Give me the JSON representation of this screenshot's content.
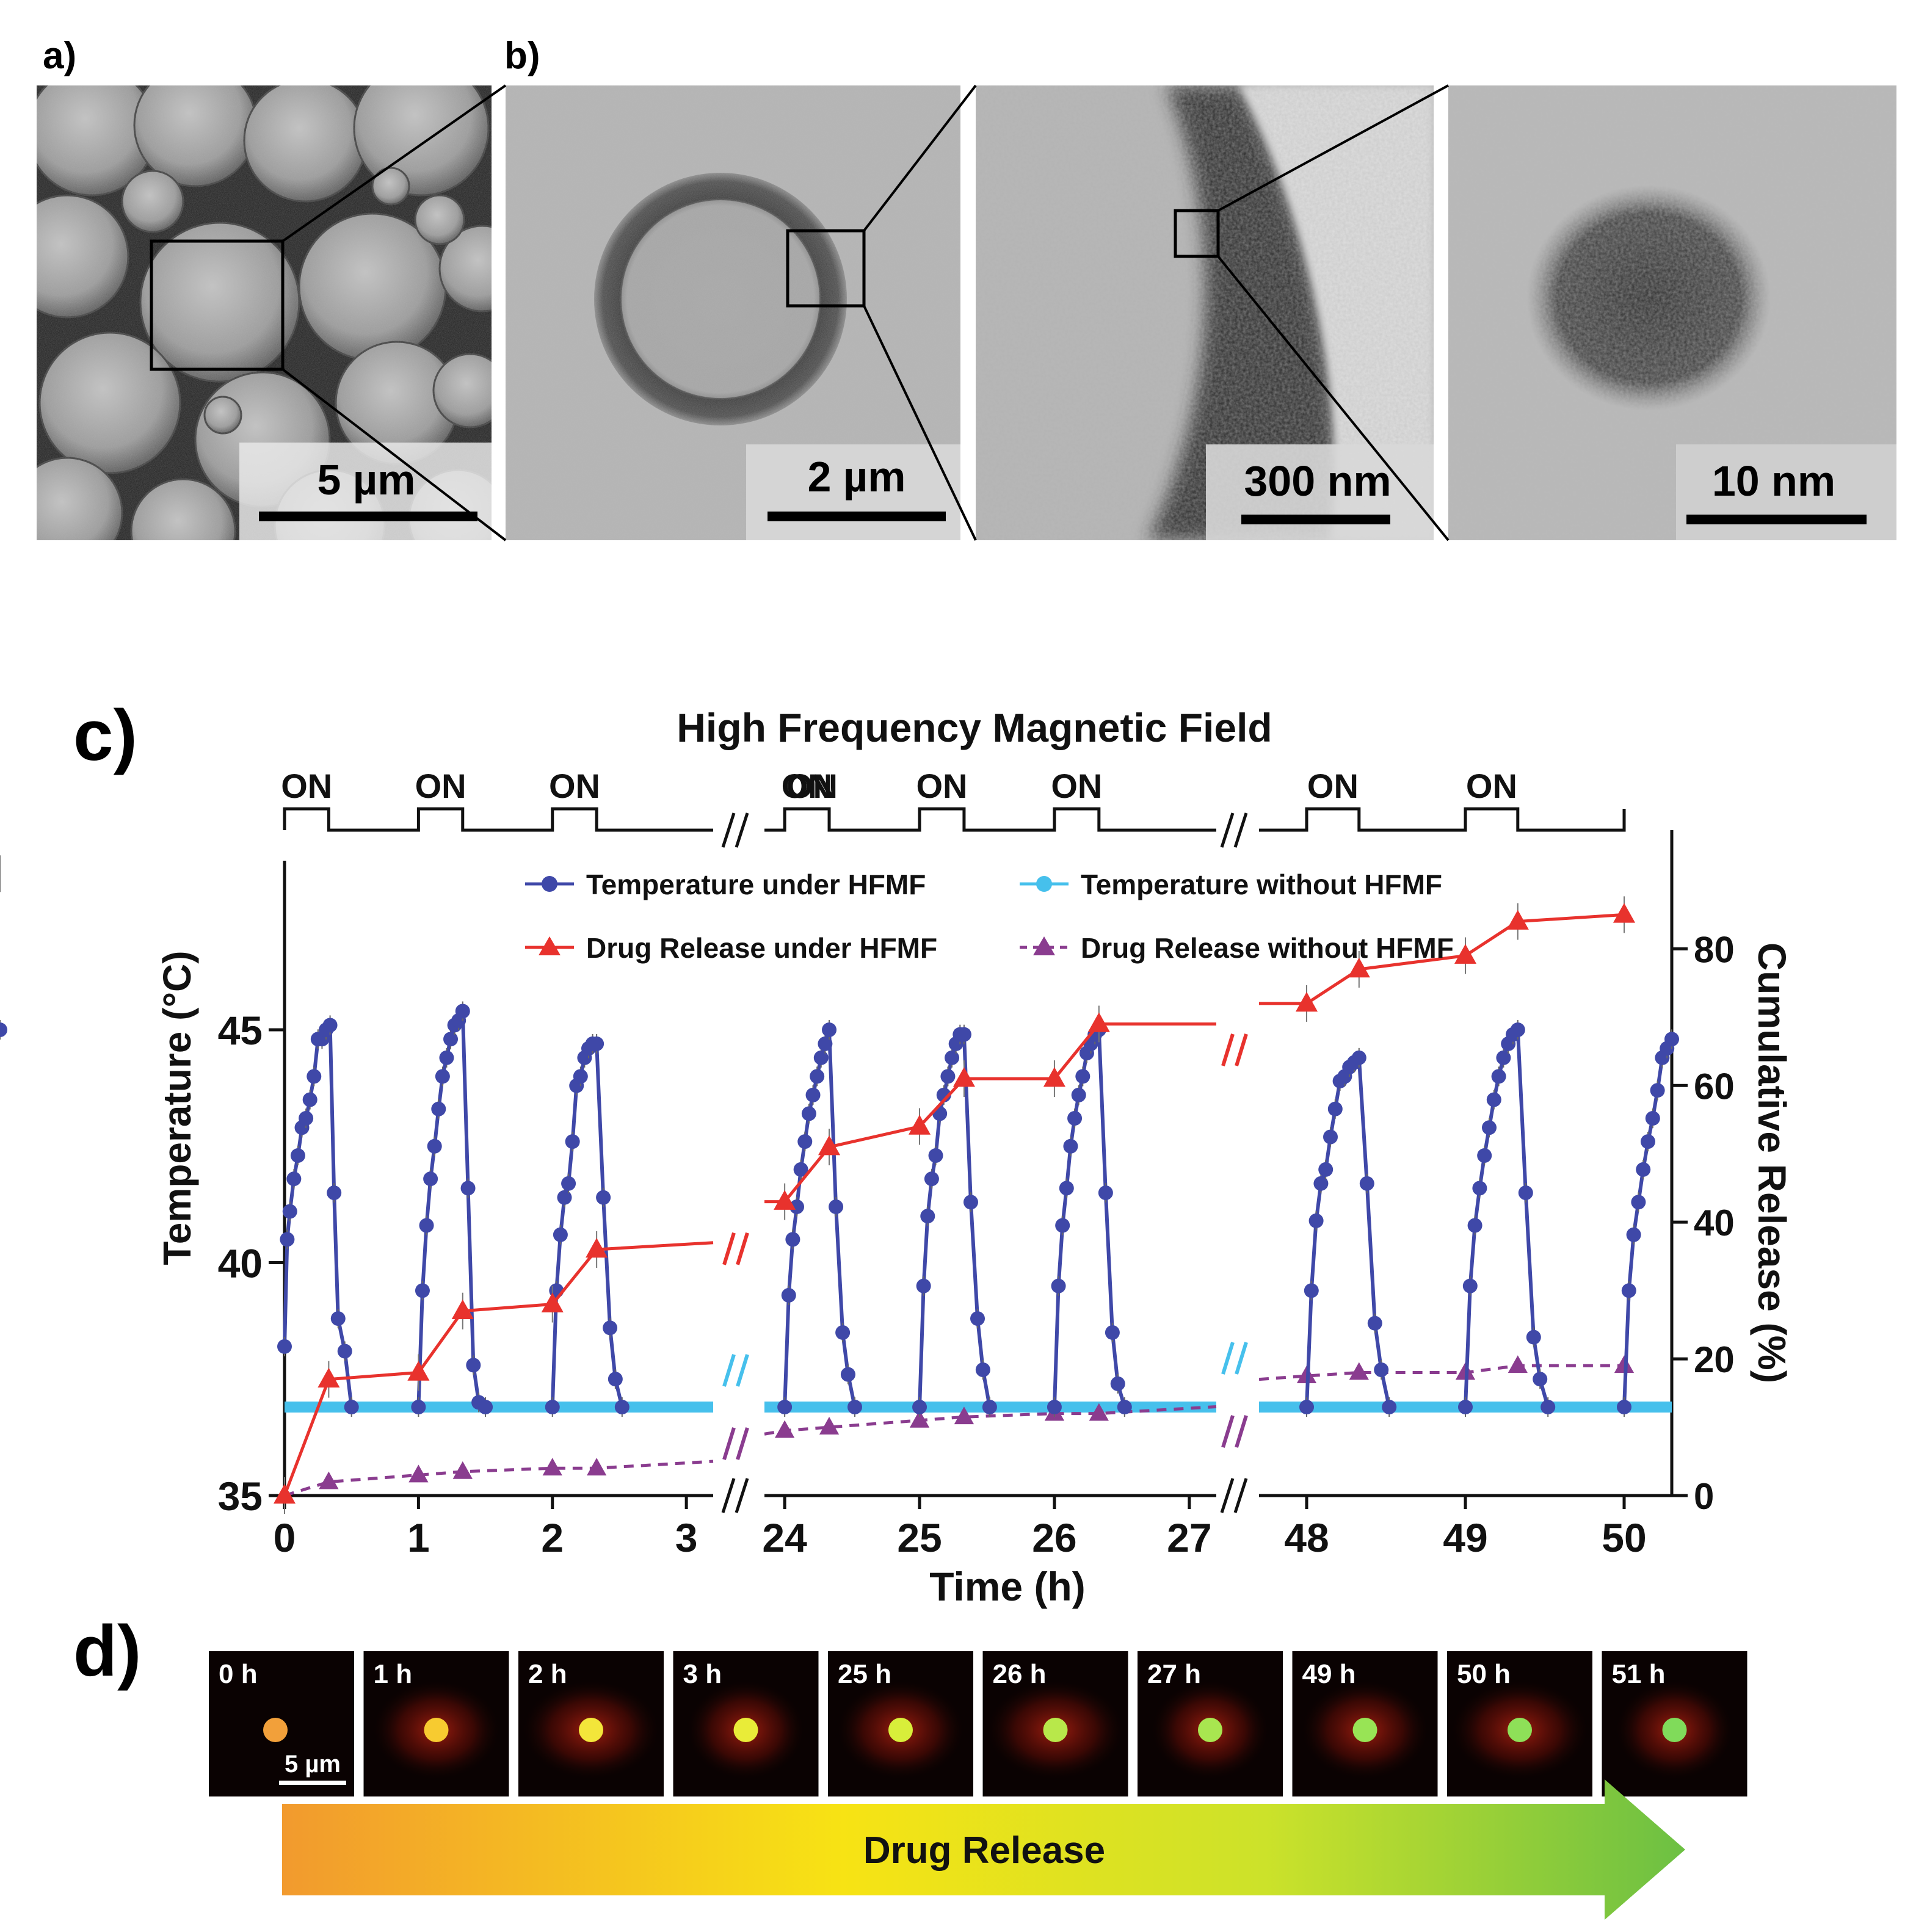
{
  "panel_labels": {
    "a": "a)",
    "b": "b)",
    "c": "c)",
    "d": "d)"
  },
  "micrographs": [
    {
      "id": "sem",
      "scale_label": "5 µm"
    },
    {
      "id": "tem-particle",
      "scale_label": "2 µm"
    },
    {
      "id": "tem-shell",
      "scale_label": "300 nm"
    },
    {
      "id": "hrtem",
      "scale_label": "10 nm"
    }
  ],
  "chart_data": {
    "type": "line",
    "title": "High Frequency Magnetic Field",
    "xlabel": "Time (h)",
    "ylabel": "Temperature (°C)",
    "y2label": "Cumulative Release (%)",
    "ylim": [
      35,
      48.5
    ],
    "y2lim": [
      0,
      92
    ],
    "yticks": [
      35,
      40,
      45
    ],
    "y2ticks": [
      0,
      20,
      40,
      60,
      80
    ],
    "xtick_labels": [
      "0",
      "1",
      "2",
      "3",
      "24",
      "25",
      "26",
      "27",
      "48",
      "49",
      "50"
    ],
    "x_segments": [
      [
        0,
        3.2
      ],
      [
        23.85,
        27.2
      ],
      [
        47.7,
        50.3
      ]
    ],
    "field_state_label": "ON",
    "field_on_windows": [
      [
        0,
        0.33
      ],
      [
        1,
        1.33
      ],
      [
        2,
        2.33
      ],
      [
        24,
        24.33
      ],
      [
        25,
        25.33
      ],
      [
        26,
        26.33
      ],
      [
        48,
        48.33
      ],
      [
        49,
        49.33
      ],
      [
        50,
        50.33
      ]
    ],
    "legend": [
      {
        "label": "Temperature under HFMF",
        "color": "#3f48a8",
        "marker": "circle",
        "line": "solid"
      },
      {
        "label": "Temperature without HFMF",
        "color": "#46c0ec",
        "marker": "circle",
        "line": "solid"
      },
      {
        "label": "Drug Release under HFMF",
        "color": "#e8322d",
        "marker": "triangle",
        "line": "solid"
      },
      {
        "label": "Drug Release without HFMF",
        "color": "#8a3c8f",
        "marker": "triangle",
        "line": "dashed"
      }
    ],
    "series": [
      {
        "name": "Temperature under HFMF",
        "axis": "left",
        "cycles": [
          {
            "x": [
              0,
              0.02,
              0.04,
              0.07,
              0.1,
              0.13,
              0.16,
              0.19,
              0.22,
              0.25,
              0.28,
              0.31,
              0.34,
              0.37,
              0.4,
              0.45,
              0.5
            ],
            "y": [
              38.2,
              40.5,
              41.1,
              41.8,
              42.3,
              42.9,
              43.1,
              43.5,
              44.0,
              44.8,
              44.8,
              45.0,
              45.1,
              41.5,
              38.8,
              38.1,
              36.9
            ]
          },
          {
            "x": [
              1,
              1.03,
              1.06,
              1.09,
              1.12,
              1.15,
              1.18,
              1.21,
              1.24,
              1.27,
              1.3,
              1.33,
              1.37,
              1.41,
              1.45,
              1.5
            ],
            "y": [
              36.9,
              39.4,
              40.8,
              41.8,
              42.5,
              43.3,
              44.0,
              44.4,
              44.8,
              45.1,
              45.2,
              45.4,
              41.6,
              37.8,
              37.0,
              36.9
            ]
          },
          {
            "x": [
              2,
              2.03,
              2.06,
              2.09,
              2.12,
              2.15,
              2.18,
              2.21,
              2.24,
              2.27,
              2.3,
              2.33,
              2.38,
              2.43,
              2.47,
              2.52
            ],
            "y": [
              36.9,
              39.4,
              40.6,
              41.4,
              41.7,
              42.6,
              43.8,
              44.0,
              44.4,
              44.6,
              44.7,
              44.7,
              41.4,
              38.6,
              37.5,
              36.9
            ]
          },
          {
            "x": [
              24,
              24.03,
              24.06,
              24.09,
              24.12,
              24.15,
              24.18,
              24.21,
              24.24,
              24.27,
              24.3,
              24.33,
              24.38,
              24.43,
              24.47,
              24.52
            ],
            "y": [
              36.9,
              39.3,
              40.5,
              41.2,
              42.0,
              42.6,
              43.2,
              43.6,
              44.0,
              44.4,
              44.7,
              45.0,
              41.2,
              38.5,
              37.6,
              36.9
            ]
          },
          {
            "x": [
              25,
              25.03,
              25.06,
              25.09,
              25.12,
              25.15,
              25.18,
              25.21,
              25.24,
              25.27,
              25.3,
              25.33,
              25.38,
              25.43,
              25.47,
              25.52
            ],
            "y": [
              36.9,
              39.5,
              41.0,
              41.8,
              42.3,
              43.2,
              43.6,
              44.0,
              44.4,
              44.7,
              44.9,
              44.9,
              41.3,
              38.8,
              37.7,
              36.9
            ]
          },
          {
            "x": [
              26,
              26.03,
              26.06,
              26.09,
              26.12,
              26.15,
              26.18,
              26.21,
              26.24,
              26.27,
              26.3,
              26.33,
              26.38,
              26.43,
              26.47,
              26.52
            ],
            "y": [
              36.9,
              39.5,
              40.8,
              41.6,
              42.5,
              43.1,
              43.6,
              44.0,
              44.5,
              44.7,
              44.9,
              45.0,
              41.5,
              38.5,
              37.4,
              36.9
            ]
          },
          {
            "x": [
              48,
              48.03,
              48.06,
              48.09,
              48.12,
              48.15,
              48.18,
              48.21,
              48.24,
              48.27,
              48.3,
              48.33,
              48.38,
              48.43,
              48.47,
              48.52
            ],
            "y": [
              36.9,
              39.4,
              40.9,
              41.7,
              42.0,
              42.7,
              43.3,
              43.9,
              44.0,
              44.2,
              44.3,
              44.4,
              41.7,
              38.7,
              37.7,
              36.9
            ]
          },
          {
            "x": [
              49,
              49.03,
              49.06,
              49.09,
              49.12,
              49.15,
              49.18,
              49.21,
              49.24,
              49.27,
              49.3,
              49.33,
              49.38,
              49.43,
              49.47,
              49.52
            ],
            "y": [
              36.9,
              39.5,
              40.8,
              41.6,
              42.3,
              42.9,
              43.5,
              44.0,
              44.4,
              44.7,
              44.9,
              45.0,
              41.5,
              38.4,
              37.5,
              36.9
            ]
          },
          {
            "x": [
              50,
              50.03,
              50.06,
              50.09,
              50.12,
              50.15,
              50.18,
              50.21,
              50.24,
              50.27,
              50.3,
              50.33
            ],
            "y": [
              36.9,
              39.4,
              40.6,
              41.3,
              42.0,
              42.6,
              43.1,
              43.7,
              44.4,
              44.6,
              44.8,
              45.0
            ]
          }
        ]
      },
      {
        "name": "Temperature without HFMF",
        "axis": "left",
        "x": [
          0,
          3.2,
          23.85,
          27.2,
          47.7,
          50.3
        ],
        "y": [
          36.9,
          36.9,
          36.9,
          36.9,
          36.9,
          36.9
        ]
      },
      {
        "name": "Drug Release under HFMF",
        "axis": "right",
        "x": [
          0,
          0.33,
          1,
          1.33,
          2,
          2.33,
          3.2,
          23.85,
          24,
          24.33,
          25,
          25.33,
          26,
          26.33,
          27.2,
          47.7,
          48,
          48.33,
          49,
          49.33,
          50,
          50.33
        ],
        "y": [
          0,
          17,
          18,
          27,
          28,
          36,
          37,
          43,
          43,
          51,
          54,
          61,
          61,
          69,
          69,
          72,
          72,
          77,
          79,
          84,
          85,
          91
        ]
      },
      {
        "name": "Drug Release without HFMF",
        "axis": "right",
        "x": [
          0,
          0.33,
          1,
          1.33,
          2,
          2.33,
          3.2,
          23.85,
          24,
          24.33,
          25,
          25.33,
          26,
          26.33,
          27.2,
          47.7,
          48,
          48.33,
          49,
          49.33,
          50,
          50.33
        ],
        "y": [
          0,
          2,
          3,
          3.5,
          4,
          4,
          5,
          9,
          9.5,
          10,
          11,
          11.5,
          12,
          12,
          13,
          17,
          17.5,
          18,
          18,
          19,
          19,
          19.5
        ]
      }
    ]
  },
  "timelapse": {
    "frames": [
      {
        "label": "0 h",
        "color": "#f2a03a"
      },
      {
        "label": "1 h",
        "color": "#f7cb30"
      },
      {
        "label": "2 h",
        "color": "#f3e63a"
      },
      {
        "label": "3 h",
        "color": "#e9ec38"
      },
      {
        "label": "25 h",
        "color": "#d8ee3a"
      },
      {
        "label": "26 h",
        "color": "#b8e84a"
      },
      {
        "label": "27 h",
        "color": "#a8e650"
      },
      {
        "label": "49 h",
        "color": "#98e455"
      },
      {
        "label": "50 h",
        "color": "#8ee058"
      },
      {
        "label": "51 h",
        "color": "#80db5a"
      }
    ],
    "scale_label": "5 µm",
    "arrow_label": "Drug Release"
  }
}
